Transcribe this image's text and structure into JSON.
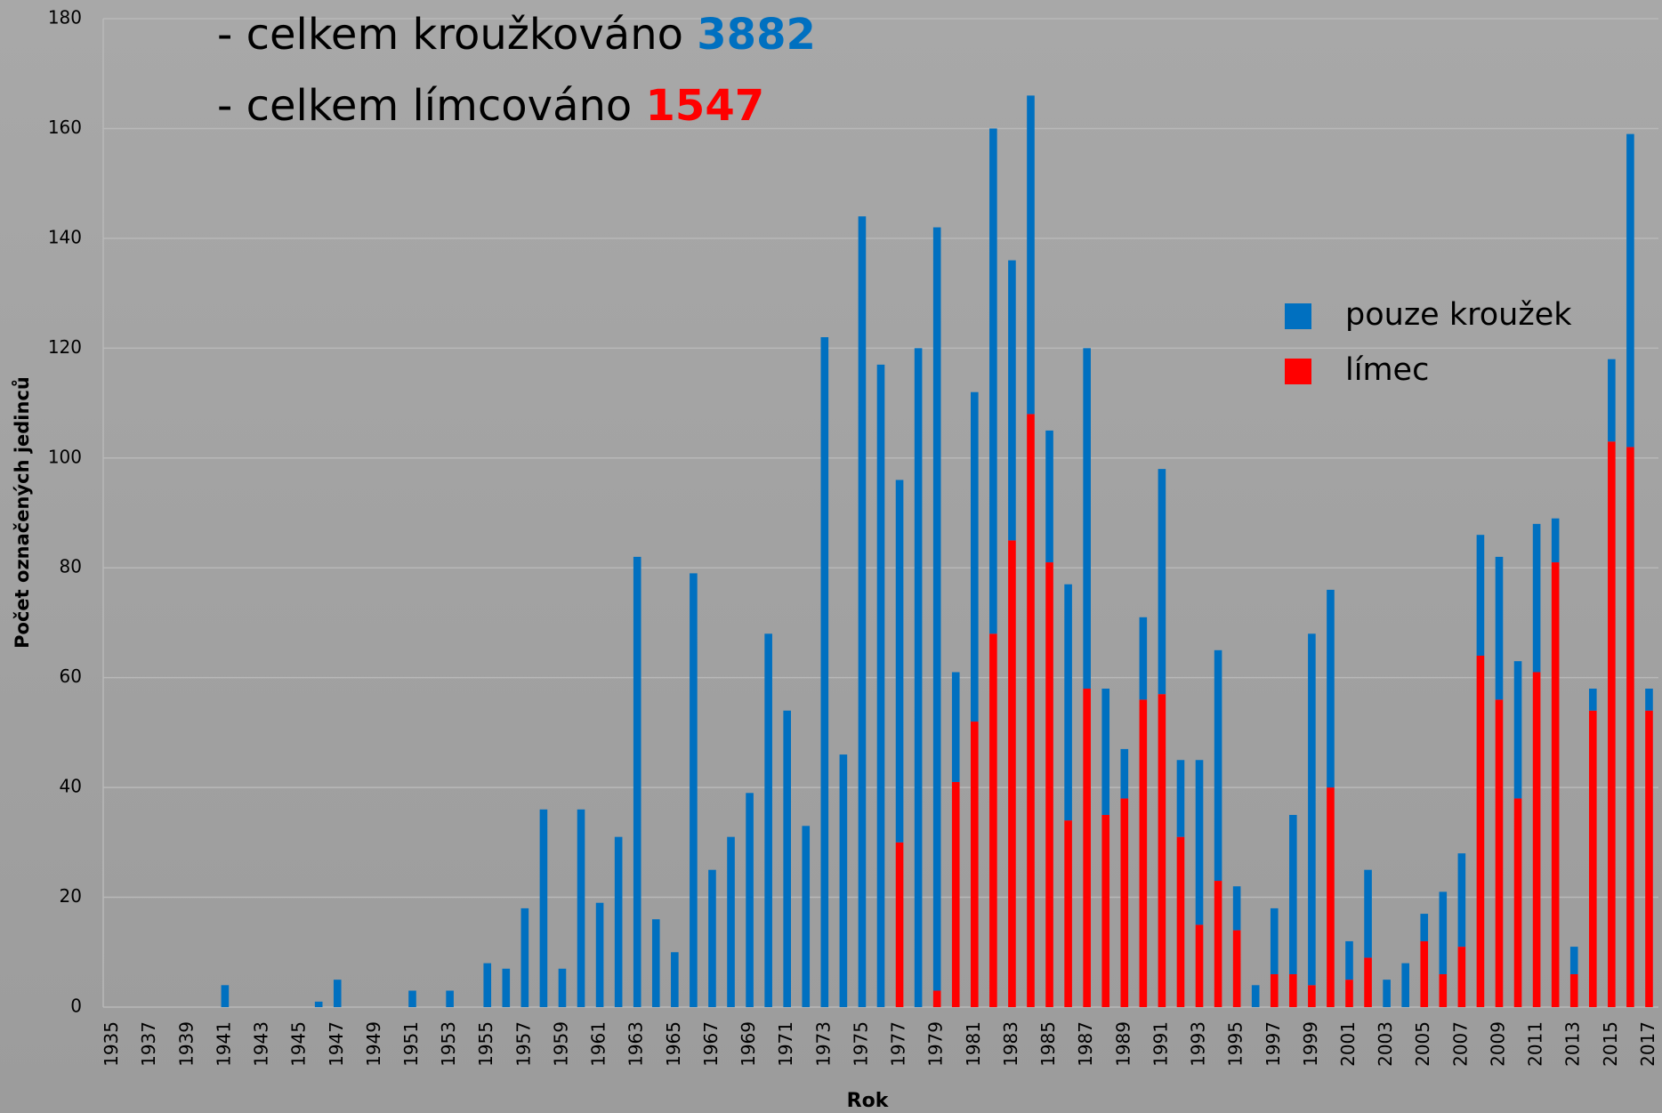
{
  "chart_data": {
    "type": "stacked_bar",
    "annotations": [
      {
        "text": "- celkem kroužkováno",
        "value": 3882,
        "color": "#0070c0"
      },
      {
        "text": "- celkem límcováno",
        "value": 1547,
        "color": "#ff0000"
      }
    ],
    "x_label": "Rok",
    "y_label": "Počet označených jedinců",
    "categories": [
      "1935",
      null,
      "1937",
      null,
      "1939",
      null,
      "1941",
      null,
      "1943",
      null,
      "1945",
      null,
      "1947",
      null,
      "1949",
      null,
      "1951",
      null,
      "1953",
      null,
      "1955",
      null,
      "1957",
      null,
      "1959",
      null,
      "1961",
      null,
      "1963",
      null,
      "1965",
      null,
      "1967",
      null,
      "1969",
      null,
      "1971",
      null,
      "1973",
      null,
      "1975",
      null,
      "1977",
      null,
      "1979",
      null,
      "1981",
      null,
      "1983",
      null,
      "1985",
      null,
      "1987",
      null,
      "1989",
      null,
      "1991",
      null,
      "1993",
      null,
      "1995",
      null,
      "1997",
      null,
      "1999",
      null,
      "2001",
      null,
      "2003",
      null,
      "2005",
      null,
      "2007",
      null,
      "2009",
      null,
      "2011",
      null,
      "2013",
      null,
      "2015",
      null,
      "2017"
    ],
    "series": [
      {
        "name": "límec",
        "color": "#ff0000",
        "values": [
          0,
          0,
          0,
          0,
          0,
          0,
          0,
          0,
          0,
          0,
          0,
          0,
          0,
          0,
          0,
          0,
          0,
          0,
          0,
          0,
          0,
          0,
          0,
          0,
          0,
          0,
          0,
          0,
          0,
          0,
          0,
          0,
          0,
          0,
          0,
          0,
          0,
          0,
          0,
          0,
          0,
          0,
          30,
          0,
          3,
          41,
          52,
          68,
          85,
          108,
          81,
          34,
          58,
          35,
          38,
          56,
          57,
          31,
          15,
          23,
          14,
          0,
          6,
          6,
          4,
          40,
          5,
          9,
          0,
          0,
          12,
          6,
          11,
          64,
          56,
          38,
          61,
          81,
          6,
          54,
          103,
          102,
          54
        ]
      },
      {
        "name": "pouze kroužek",
        "color": "#0070c0",
        "values": [
          0,
          0,
          0,
          0,
          0,
          0,
          4,
          0,
          0,
          0,
          0,
          1,
          5,
          0,
          0,
          0,
          3,
          0,
          3,
          0,
          8,
          7,
          18,
          36,
          7,
          36,
          19,
          31,
          82,
          16,
          10,
          79,
          25,
          31,
          39,
          68,
          54,
          33,
          122,
          46,
          144,
          117,
          66,
          120,
          139,
          20,
          60,
          92,
          51,
          58,
          24,
          43,
          62,
          23,
          9,
          15,
          41,
          14,
          30,
          42,
          8,
          4,
          12,
          29,
          64,
          36,
          7,
          16,
          5,
          8,
          5,
          15,
          17,
          22,
          26,
          25,
          27,
          8,
          5,
          4,
          15,
          57,
          4
        ]
      }
    ],
    "ylim": [
      0,
      180
    ],
    "yticks": [
      0,
      20,
      40,
      60,
      80,
      100,
      120,
      140,
      160,
      180
    ],
    "grid": true
  }
}
